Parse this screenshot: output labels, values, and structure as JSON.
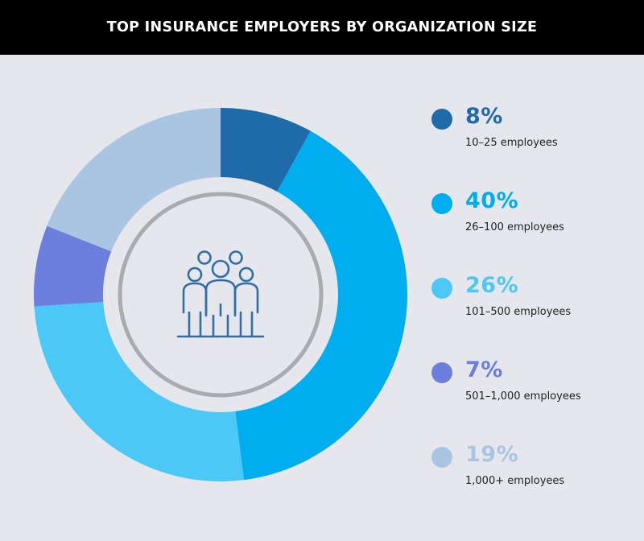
{
  "header": {
    "title": "TOP INSURANCE EMPLOYERS BY ORGANIZATION SIZE"
  },
  "colors": {
    "header_bg": "#000000",
    "background": "#e6e7ec",
    "center_ring": "#a9abae",
    "center_fill": "#e6e7ec",
    "icon": "#2f6ea6"
  },
  "center_icon": "people-group-icon",
  "chart_data": {
    "type": "donut",
    "title": "TOP INSURANCE EMPLOYERS BY ORGANIZATION SIZE",
    "series": [
      {
        "label": "10–25 employees",
        "value": 8,
        "display": "8%",
        "color": "#1f6aa8"
      },
      {
        "label": "26–100 employees",
        "value": 40,
        "display": "40%",
        "color": "#00adef"
      },
      {
        "label": "101–500 employees",
        "value": 26,
        "display": "26%",
        "color": "#4bc8f6"
      },
      {
        "label": "501–1,000 employees",
        "value": 7,
        "display": "7%",
        "color": "#6d7fdc"
      },
      {
        "label": "1,000+ employees",
        "value": 19,
        "display": "19%",
        "color": "#a9c5e2"
      }
    ]
  }
}
